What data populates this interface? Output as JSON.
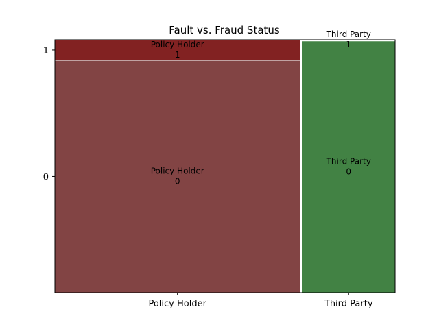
{
  "chart_data": {
    "type": "mosaic",
    "title": "Fault vs. Fraud Status",
    "xlabel": "",
    "ylabel": "",
    "categories": [
      "Policy Holder",
      "Third Party"
    ],
    "y_levels": [
      "0",
      "1"
    ],
    "column_share": [
      0.725,
      0.275
    ],
    "proportion_level_1": [
      0.081,
      0.0045
    ],
    "colors": {
      "Policy Holder": {
        "0": "#824444",
        "1": "#822222"
      },
      "Third Party": {
        "0": "#428244",
        "1": "#428244"
      }
    },
    "cell_labels": [
      {
        "category": "Policy Holder",
        "level": "1",
        "line1": "Policy Holder",
        "line2": "1"
      },
      {
        "category": "Policy Holder",
        "level": "0",
        "line1": "Policy Holder",
        "line2": "0"
      },
      {
        "category": "Third Party",
        "level": "1",
        "line1": "Third Party",
        "line2": "1"
      },
      {
        "category": "Third Party",
        "level": "0",
        "line1": "Third Party",
        "line2": "0"
      }
    ],
    "x_tick_labels": [
      "Policy Holder",
      "Third Party"
    ],
    "y_tick_labels": [
      "0",
      "1"
    ],
    "grid": false,
    "legend": "none"
  }
}
